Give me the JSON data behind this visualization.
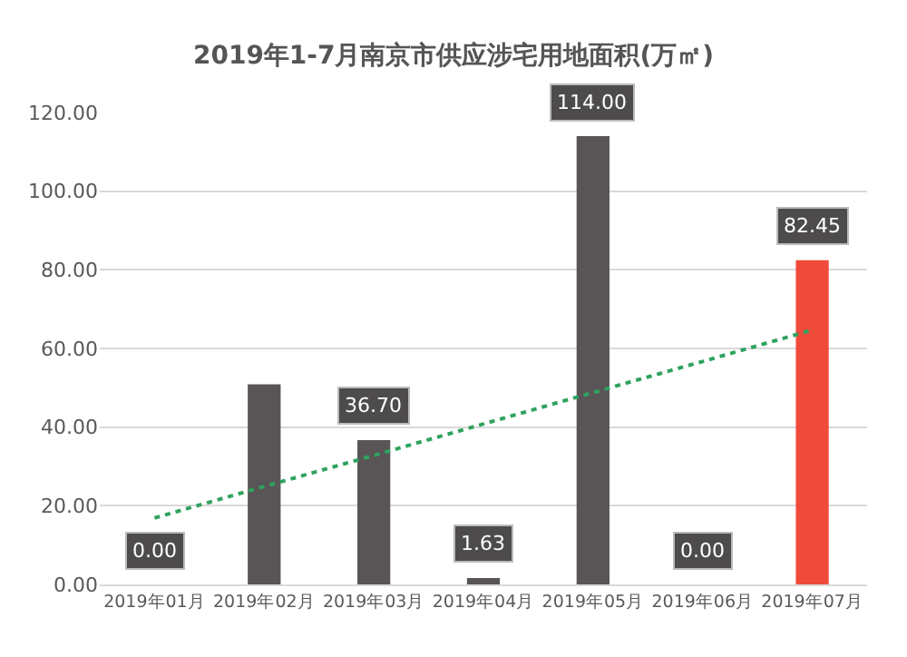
{
  "chart_data": {
    "type": "bar",
    "title": "2019年1-7月南京市供应涉宅用地面积(万㎡)",
    "categories": [
      "2019年01月",
      "2019年02月",
      "2019年03月",
      "2019年04月",
      "2019年05月",
      "2019年06月",
      "2019年07月"
    ],
    "series": [
      {
        "values": [
          0.0,
          50.9,
          36.7,
          1.63,
          114.0,
          0.0,
          82.45
        ],
        "colors": [
          "#595456",
          "#595456",
          "#595456",
          "#595456",
          "#595456",
          "#595456",
          "#f04a3a"
        ],
        "value_labels": [
          "0.00",
          null,
          "36.70",
          "1.63",
          "114.00",
          "0.00",
          "82.45"
        ]
      },
      {
        "type": "line",
        "color": "#2ea35e",
        "line_style": "dotted",
        "values": [
          16.9,
          24.9,
          32.8,
          40.8,
          48.8,
          56.7,
          64.7
        ]
      }
    ],
    "ylim": [
      0,
      120
    ],
    "yticks": [
      {
        "value": 0,
        "label": "0.00"
      },
      {
        "value": 20,
        "label": "20.00"
      },
      {
        "value": 40,
        "label": "40.00"
      },
      {
        "value": 60,
        "label": "60.00"
      },
      {
        "value": 80,
        "label": "80.00"
      },
      {
        "value": 100,
        "label": "100.00"
      },
      {
        "value": 120,
        "label": "120.00"
      }
    ],
    "grid": "y"
  }
}
